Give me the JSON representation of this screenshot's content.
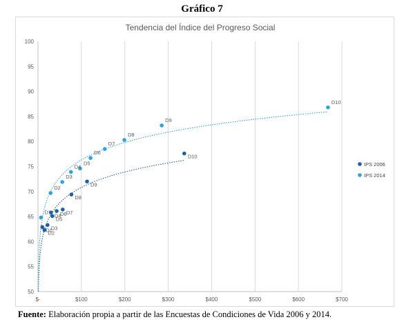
{
  "figure_title": "Gráfico 7",
  "source_label": "Fuente:",
  "source_text": "Elaboración propia a partir de las Encuestas de Condiciones de Vida 2006 y 2014.",
  "chart_data": {
    "type": "scatter",
    "title": "Tendencia del Índice del Progreso Social",
    "xlabel": "",
    "ylabel": "",
    "xlim": [
      0,
      700
    ],
    "ylim": [
      50,
      100
    ],
    "x_ticks": [
      0,
      100,
      200,
      300,
      400,
      500,
      600,
      700
    ],
    "x_tick_labels": [
      "$-",
      "$100",
      "$200",
      "$300",
      "$400",
      "$500",
      "$600",
      "$700"
    ],
    "y_ticks": [
      50,
      55,
      60,
      65,
      70,
      75,
      80,
      85,
      90,
      95,
      100
    ],
    "grid": "vertical",
    "legend_position": "right",
    "series": [
      {
        "name": "IPS 2006",
        "color": "#1f5ea8",
        "trendline": "logarithmic",
        "points": [
          {
            "label": "D1",
            "x": 10,
            "y": 62.9
          },
          {
            "label": "D2",
            "x": 15,
            "y": 62.3
          },
          {
            "label": "D3",
            "x": 22,
            "y": 63.3
          },
          {
            "label": "D4",
            "x": 30,
            "y": 65.8
          },
          {
            "label": "D5",
            "x": 33,
            "y": 65.1
          },
          {
            "label": "D6",
            "x": 43,
            "y": 66.1
          },
          {
            "label": "D7",
            "x": 57,
            "y": 66.4
          },
          {
            "label": "D8",
            "x": 77,
            "y": 69.4
          },
          {
            "label": "D9",
            "x": 113,
            "y": 72.0
          },
          {
            "label": "D10",
            "x": 337,
            "y": 77.6
          }
        ]
      },
      {
        "name": "IPS 2014",
        "color": "#2ca3df",
        "trendline": "logarithmic",
        "points": [
          {
            "label": "D1",
            "x": 7,
            "y": 64.8
          },
          {
            "label": "D2",
            "x": 29,
            "y": 69.7
          },
          {
            "label": "D3",
            "x": 56,
            "y": 71.9
          },
          {
            "label": "D4",
            "x": 76,
            "y": 73.9
          },
          {
            "label": "D5",
            "x": 97,
            "y": 74.6
          },
          {
            "label": "D6",
            "x": 121,
            "y": 76.7
          },
          {
            "label": "D7",
            "x": 154,
            "y": 78.5
          },
          {
            "label": "D8",
            "x": 199,
            "y": 80.3
          },
          {
            "label": "D9",
            "x": 285,
            "y": 83.2
          },
          {
            "label": "D10",
            "x": 668,
            "y": 86.8
          }
        ]
      }
    ]
  }
}
